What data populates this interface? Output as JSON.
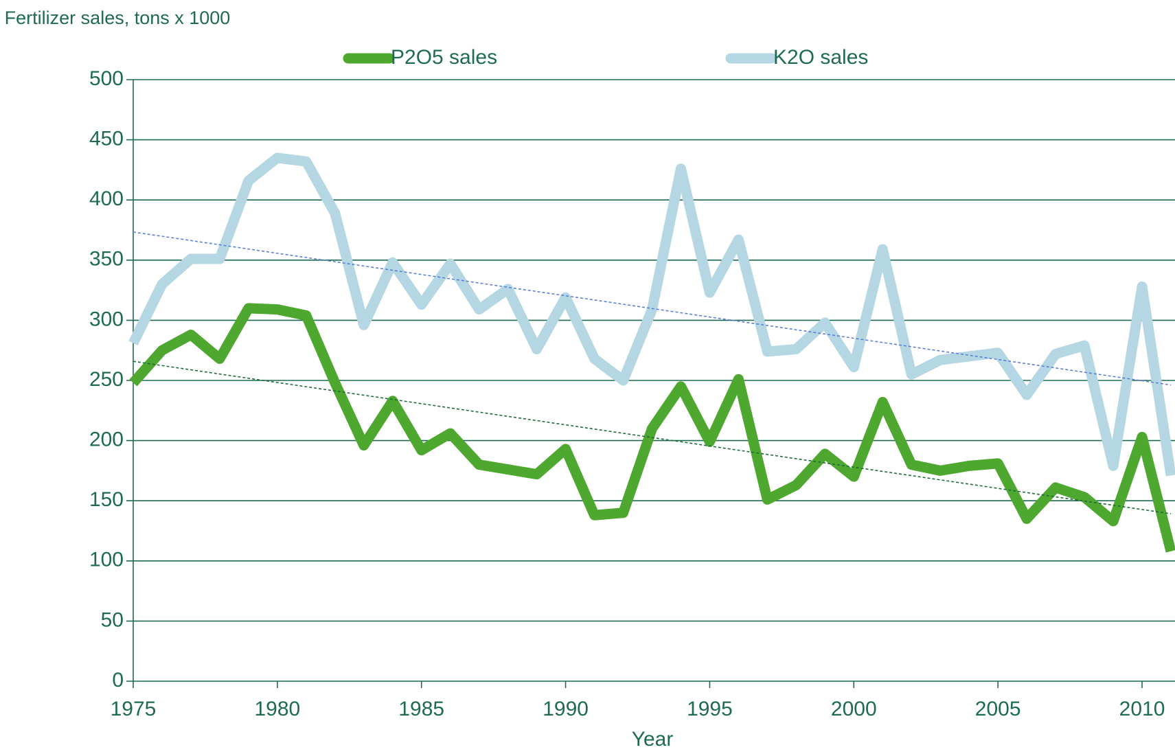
{
  "chart_data": {
    "type": "line",
    "y_axis_title": "Fertilizer sales, tons x 1000",
    "x_axis_title": "Year",
    "x": [
      1975,
      1976,
      1977,
      1978,
      1979,
      1980,
      1981,
      1982,
      1983,
      1984,
      1985,
      1986,
      1987,
      1988,
      1989,
      1990,
      1991,
      1992,
      1993,
      1994,
      1995,
      1996,
      1997,
      1998,
      1999,
      2000,
      2001,
      2002,
      2003,
      2004,
      2005,
      2006,
      2007,
      2008,
      2009,
      2010,
      2011
    ],
    "series": [
      {
        "name": "P2O5 sales",
        "color": "#4ea72e",
        "trendline": true,
        "trendline_color": "#1e6b3a",
        "values": [
          248,
          275,
          288,
          268,
          310,
          309,
          304,
          248,
          196,
          233,
          192,
          206,
          180,
          176,
          172,
          193,
          138,
          140,
          210,
          245,
          199,
          251,
          151,
          163,
          189,
          170,
          232,
          180,
          175,
          179,
          181,
          135,
          161,
          153,
          133,
          203,
          108
        ]
      },
      {
        "name": "K2O sales",
        "color": "#b4d7e3",
        "trendline": true,
        "trendline_color": "#5b7fd6",
        "values": [
          281,
          330,
          351,
          351,
          416,
          435,
          432,
          389,
          296,
          348,
          313,
          347,
          309,
          326,
          276,
          319,
          268,
          250,
          309,
          426,
          323,
          367,
          274,
          276,
          298,
          261,
          359,
          255,
          267,
          270,
          273,
          238,
          272,
          279,
          179,
          328,
          171
        ]
      }
    ],
    "xlim": [
      1975,
      2011
    ],
    "xticks": [
      1975,
      1980,
      1985,
      1990,
      1995,
      2000,
      2005,
      2010
    ],
    "ylim": [
      0,
      500
    ],
    "yticks": [
      0,
      50,
      100,
      150,
      200,
      250,
      300,
      350,
      400,
      450,
      500
    ],
    "grid": true,
    "legend": "top"
  }
}
